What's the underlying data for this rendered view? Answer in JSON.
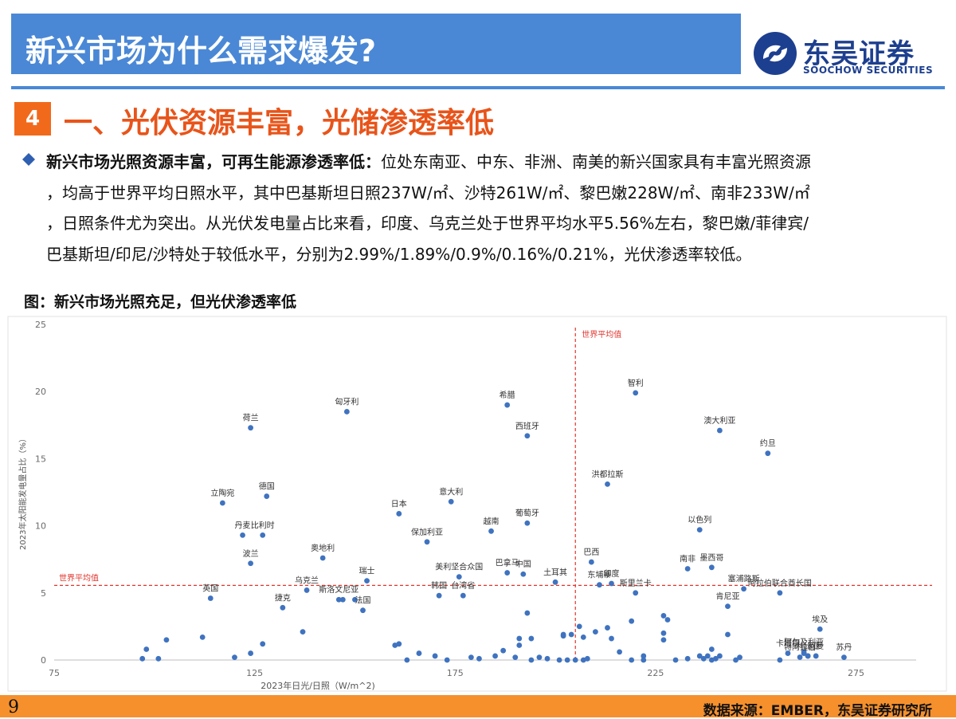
{
  "header": {
    "title": "新兴市场为什么需求爆发?",
    "logo_cn": "东吴证券",
    "logo_en": "SOOCHOW SECURITIES"
  },
  "section": {
    "number": "4",
    "title": "一、光伏资源丰富，光储渗透率低"
  },
  "paragraph": {
    "lead": "新兴市场光照资源丰富，可再生能源渗透率低：",
    "line1_rest": "位处东南亚、中东、非洲、南美的新兴国家具有丰富光照资源",
    "line2": "，均高于世界平均日照水平，其中巴基斯坦日照237W/㎡、沙特261W/㎡、黎巴嫩228W/㎡、南非233W/㎡",
    "line3": "，日照条件尤为突出。从光伏发电量占比来看，印度、乌克兰处于世界平均水平5.56%左右，黎巴嫩/菲律宾/",
    "line4": "巴基斯坦/印尼/沙特处于较低水平，分别为2.99%/1.89%/0.9%/0.16%/0.21%，光伏渗透率较低。"
  },
  "figure_caption": "图：新兴市场光照充足，但光伏渗透率低",
  "chart_data": {
    "type": "scatter",
    "xlabel": "2023年日光/日照（W/m^2)",
    "ylabel": "2023年太阳能发电量占比（%）",
    "xlim": [
      75,
      290
    ],
    "ylim": [
      0,
      25
    ],
    "x_ticks": [
      "75",
      "125",
      "175",
      "225",
      "275"
    ],
    "y_ticks": [
      "0",
      "5",
      "10",
      "15",
      "20",
      "25"
    ],
    "grid": false,
    "ref_lines": {
      "vertical_x": 205,
      "horizontal_y": 5.56,
      "label": "世界平均值"
    },
    "point_color": "#3f73c0",
    "ref_color": "#e0342c",
    "labeled_points": [
      {
        "label": "荷兰",
        "x": 124,
        "y": 17.3
      },
      {
        "label": "匈牙利",
        "x": 148,
        "y": 18.5
      },
      {
        "label": "希腊",
        "x": 188,
        "y": 19.0
      },
      {
        "label": "西班牙",
        "x": 193,
        "y": 16.7
      },
      {
        "label": "智利",
        "x": 220,
        "y": 19.9
      },
      {
        "label": "澳大利亚",
        "x": 241,
        "y": 17.1
      },
      {
        "label": "约旦",
        "x": 253,
        "y": 15.4
      },
      {
        "label": "洪都拉斯",
        "x": 213,
        "y": 13.1
      },
      {
        "label": "立陶宛",
        "x": 117,
        "y": 11.7
      },
      {
        "label": "德国",
        "x": 128,
        "y": 12.2
      },
      {
        "label": "意大利",
        "x": 174,
        "y": 11.8
      },
      {
        "label": "日本",
        "x": 161,
        "y": 10.9
      },
      {
        "label": "越南",
        "x": 184,
        "y": 9.6
      },
      {
        "label": "葡萄牙",
        "x": 193,
        "y": 10.2
      },
      {
        "label": "以色列",
        "x": 236,
        "y": 9.7
      },
      {
        "label": "丹麦",
        "x": 122,
        "y": 9.3
      },
      {
        "label": "比利时",
        "x": 127,
        "y": 9.3
      },
      {
        "label": "保加利亚",
        "x": 168,
        "y": 8.8
      },
      {
        "label": "奥地利",
        "x": 142,
        "y": 7.6
      },
      {
        "label": "波兰",
        "x": 124,
        "y": 7.2
      },
      {
        "label": "巴西",
        "x": 209,
        "y": 7.3
      },
      {
        "label": "南非",
        "x": 233,
        "y": 6.8
      },
      {
        "label": "墨西哥",
        "x": 239,
        "y": 6.9
      },
      {
        "label": "瑞士",
        "x": 153,
        "y": 5.9
      },
      {
        "label": "巴拿马",
        "x": 188,
        "y": 6.5
      },
      {
        "label": "美利坚合众国",
        "x": 176,
        "y": 6.2
      },
      {
        "label": "中国",
        "x": 192,
        "y": 6.4
      },
      {
        "label": "土耳其",
        "x": 200,
        "y": 5.8
      },
      {
        "label": "乌克兰",
        "x": 138,
        "y": 5.2
      },
      {
        "label": "东埔寨",
        "x": 211,
        "y": 5.6
      },
      {
        "label": "印度",
        "x": 214,
        "y": 5.7
      },
      {
        "label": "斯里兰卡",
        "x": 220,
        "y": 5.0
      },
      {
        "label": "塞浦路斯",
        "x": 247,
        "y": 5.3
      },
      {
        "label": "阿拉伯联合酋长国",
        "x": 256,
        "y": 5.0
      },
      {
        "label": "肯尼亚",
        "x": 243,
        "y": 4.0
      },
      {
        "label": "英国",
        "x": 114,
        "y": 4.6
      },
      {
        "label": "捷克",
        "x": 132,
        "y": 3.9
      },
      {
        "label": "斯洛文尼亚",
        "x": 146,
        "y": 4.5
      },
      {
        "label": "法国",
        "x": 152,
        "y": 3.7
      },
      {
        "label": "韩国",
        "x": 171,
        "y": 4.8
      },
      {
        "label": "台湾省",
        "x": 177,
        "y": 4.8
      },
      {
        "label": "埃及",
        "x": 266,
        "y": 2.3
      },
      {
        "label": "阿尔及利亚",
        "x": 262,
        "y": 0.6
      },
      {
        "label": "特阿拉伯",
        "x": 261,
        "y": 0.21
      },
      {
        "label": "苏丹",
        "x": 272,
        "y": 0.2
      },
      {
        "label": "卡塔尔",
        "x": 258,
        "y": 0.5
      },
      {
        "label": "利比亚",
        "x": 263,
        "y": 0.3
      },
      {
        "label": "阿曼",
        "x": 265,
        "y": 0.3
      }
    ],
    "unlabeled_points": [
      [
        97,
        0.1
      ],
      [
        98,
        0.8
      ],
      [
        101,
        0.1
      ],
      [
        103,
        1.5
      ],
      [
        112,
        1.7
      ],
      [
        120,
        0.2
      ],
      [
        124,
        0.5
      ],
      [
        127,
        1.2
      ],
      [
        137,
        2.1
      ],
      [
        147,
        4.5
      ],
      [
        150,
        4.5
      ],
      [
        160,
        1.1
      ],
      [
        161,
        1.2
      ],
      [
        163,
        0.0
      ],
      [
        166,
        0.5
      ],
      [
        170,
        0.3
      ],
      [
        173,
        0.0
      ],
      [
        179,
        0.2
      ],
      [
        181,
        0.1
      ],
      [
        185,
        0.3
      ],
      [
        187,
        0.7
      ],
      [
        190,
        0.2
      ],
      [
        191,
        1.6
      ],
      [
        191,
        1.1
      ],
      [
        193,
        3.5
      ],
      [
        194,
        1.6
      ],
      [
        194,
        0.0
      ],
      [
        196,
        0.2
      ],
      [
        198,
        0.1
      ],
      [
        201,
        0.0
      ],
      [
        202,
        1.8
      ],
      [
        202,
        1.9
      ],
      [
        203,
        0.0
      ],
      [
        204,
        1.9
      ],
      [
        205,
        0.0
      ],
      [
        206,
        2.5
      ],
      [
        207,
        0.0
      ],
      [
        207,
        1.7
      ],
      [
        208,
        0.1
      ],
      [
        210,
        2.1
      ],
      [
        213,
        2.4
      ],
      [
        214,
        1.6
      ],
      [
        216,
        0.6
      ],
      [
        219,
        2.9
      ],
      [
        219,
        0.0
      ],
      [
        222,
        0.3
      ],
      [
        222,
        0.0
      ],
      [
        227,
        3.3
      ],
      [
        227,
        2.0
      ],
      [
        227,
        1.5
      ],
      [
        228,
        3.0
      ],
      [
        230,
        0.0
      ],
      [
        233,
        0.1
      ],
      [
        236,
        0.3
      ],
      [
        237,
        0.1
      ],
      [
        238,
        0.3
      ],
      [
        239,
        0.8
      ],
      [
        239,
        0.0
      ],
      [
        240,
        0.1
      ],
      [
        241,
        0.3
      ],
      [
        243,
        1.9
      ],
      [
        245,
        0.0
      ],
      [
        246,
        0.2
      ],
      [
        256,
        0.0
      ],
      [
        262,
        0.5
      ],
      [
        263,
        0.3
      ]
    ]
  },
  "footer": {
    "page_number": "9",
    "source": "数据来源：EMBER，东吴证券研究所"
  }
}
